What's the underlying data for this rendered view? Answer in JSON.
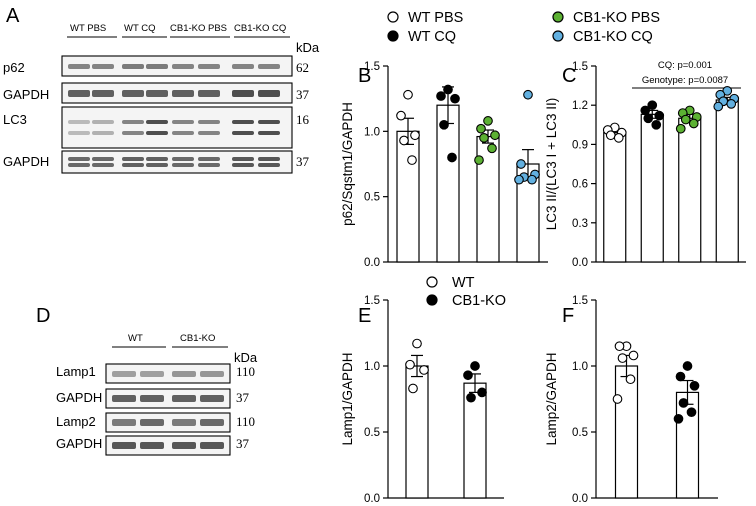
{
  "panels": {
    "A": "A",
    "B": "B",
    "C": "C",
    "D": "D",
    "E": "E",
    "F": "F"
  },
  "colors": {
    "wt_pbs": "#ffffff",
    "wt_cq": "#000000",
    "ko_pbs": "#5cb133",
    "ko_cq": "#62b0e0"
  },
  "legend_top": [
    {
      "label": "WT PBS",
      "color": "#ffffff"
    },
    {
      "label": "WT CQ",
      "color": "#000000"
    },
    {
      "label": "CB1-KO PBS",
      "color": "#5cb133"
    },
    {
      "label": "CB1-KO CQ",
      "color": "#62b0e0"
    }
  ],
  "legend_bottom": [
    {
      "label": "WT",
      "color": "#ffffff"
    },
    {
      "label": "CB1-KO",
      "color": "#000000"
    }
  ],
  "blotA": {
    "groups": [
      "WT PBS",
      "WT CQ",
      "CB1-KO PBS",
      "CB1-KO CQ"
    ],
    "kda": "kDa",
    "rows": [
      {
        "label": "p62",
        "kda": "62"
      },
      {
        "label": "GAPDH",
        "kda": "37"
      },
      {
        "label": "LC3",
        "kda": "16"
      },
      {
        "label": "GAPDH",
        "kda": "37"
      }
    ]
  },
  "blotD": {
    "groups": [
      "WT",
      "CB1-KO"
    ],
    "kda": "kDa",
    "rows": [
      {
        "label": "Lamp1",
        "kda": "110"
      },
      {
        "label": "GAPDH",
        "kda": "37"
      },
      {
        "label": "Lamp2",
        "kda": "110"
      },
      {
        "label": "GAPDH",
        "kda": "37"
      }
    ]
  },
  "stats": {
    "line1": "CQ: p=0.001",
    "line2": "Genotype: p=0.0087"
  },
  "chart_data": [
    {
      "panel": "B",
      "type": "bar",
      "ylabel": "p62/Sqstm1/GAPDH",
      "ylim": [
        0,
        1.5
      ],
      "yticks": [
        "0.0",
        "0.5",
        "1.0",
        "1.5"
      ],
      "series": [
        {
          "name": "WT PBS",
          "mean": 1.0,
          "sem": 0.1,
          "points": [
            1.28,
            1.12,
            0.97,
            0.93,
            0.78
          ]
        },
        {
          "name": "WT CQ",
          "mean": 1.2,
          "sem": 0.14,
          "points": [
            1.32,
            1.27,
            1.25,
            1.05,
            0.8
          ]
        },
        {
          "name": "CB1-KO PBS",
          "mean": 0.96,
          "sem": 0.05,
          "points": [
            1.08,
            1.02,
            0.97,
            0.95,
            0.87,
            0.78
          ]
        },
        {
          "name": "CB1-KO CQ",
          "mean": 0.75,
          "sem": 0.11,
          "points": [
            1.28,
            0.75,
            0.67,
            0.65,
            0.63,
            0.63
          ]
        }
      ]
    },
    {
      "panel": "C",
      "type": "bar",
      "ylabel": "LC3 II/(LC3 I + LC3 II)",
      "ylim": [
        0,
        1.5
      ],
      "yticks": [
        "0.0",
        "0.3",
        "0.6",
        "0.9",
        "1.2",
        "1.5"
      ],
      "series": [
        {
          "name": "WT PBS",
          "mean": 0.99,
          "sem": 0.02,
          "points": [
            1.03,
            1.01,
            0.99,
            0.97,
            0.95
          ]
        },
        {
          "name": "WT CQ",
          "mean": 1.13,
          "sem": 0.03,
          "points": [
            1.2,
            1.16,
            1.12,
            1.1,
            1.05
          ]
        },
        {
          "name": "CB1-KO PBS",
          "mean": 1.1,
          "sem": 0.03,
          "points": [
            1.16,
            1.14,
            1.11,
            1.09,
            1.06,
            1.02
          ]
        },
        {
          "name": "CB1-KO CQ",
          "mean": 1.24,
          "sem": 0.02,
          "points": [
            1.31,
            1.28,
            1.25,
            1.23,
            1.21,
            1.19
          ]
        }
      ]
    },
    {
      "panel": "E",
      "type": "bar",
      "ylabel": "Lamp1/GAPDH",
      "ylim": [
        0,
        1.5
      ],
      "yticks": [
        "0.0",
        "0.5",
        "1.0",
        "1.5"
      ],
      "series": [
        {
          "name": "WT",
          "mean": 1.0,
          "sem": 0.08,
          "points": [
            1.17,
            1.01,
            0.97,
            0.83
          ]
        },
        {
          "name": "CB1-KO",
          "mean": 0.87,
          "sem": 0.07,
          "points": [
            1.0,
            0.93,
            0.8,
            0.76
          ]
        }
      ]
    },
    {
      "panel": "F",
      "type": "bar",
      "ylabel": "Lamp2/GAPDH",
      "ylim": [
        0,
        1.5
      ],
      "yticks": [
        "0.0",
        "0.5",
        "1.0",
        "1.5"
      ],
      "series": [
        {
          "name": "WT",
          "mean": 1.0,
          "sem": 0.08,
          "points": [
            1.15,
            1.15,
            1.08,
            1.06,
            0.9,
            0.75
          ]
        },
        {
          "name": "CB1-KO",
          "mean": 0.8,
          "sem": 0.09,
          "points": [
            1.0,
            0.92,
            0.85,
            0.72,
            0.65,
            0.6
          ]
        }
      ]
    }
  ]
}
